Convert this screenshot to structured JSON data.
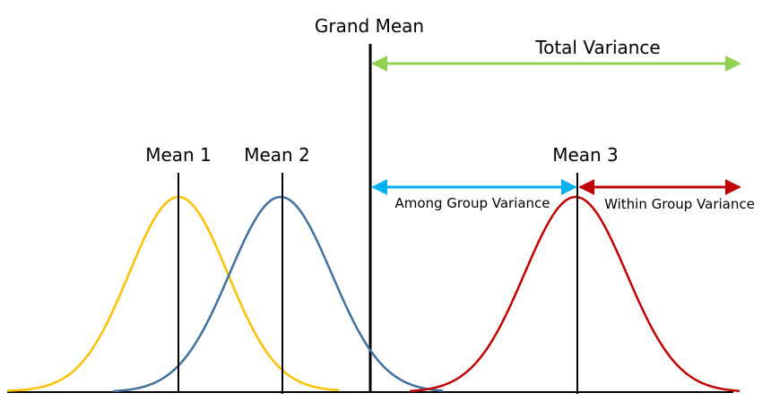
{
  "labels": {
    "grand_mean": "Grand Mean",
    "total_variance": "Total Variance",
    "mean_1": "Mean 1",
    "mean_2": "Mean 2",
    "mean_3": "Mean 3",
    "among_group_variance": "Among Group Variance",
    "within_group_variance": "Within Group Variance"
  },
  "colors": {
    "group_1_curve": "#FFC000",
    "group_2_curve": "#41719C",
    "group_3_curve": "#C00000",
    "total_variance_arrow": "#92D050",
    "among_group_arrow": "#00B0F0",
    "within_group_arrow": "#C00000",
    "lines": "#000000"
  }
}
